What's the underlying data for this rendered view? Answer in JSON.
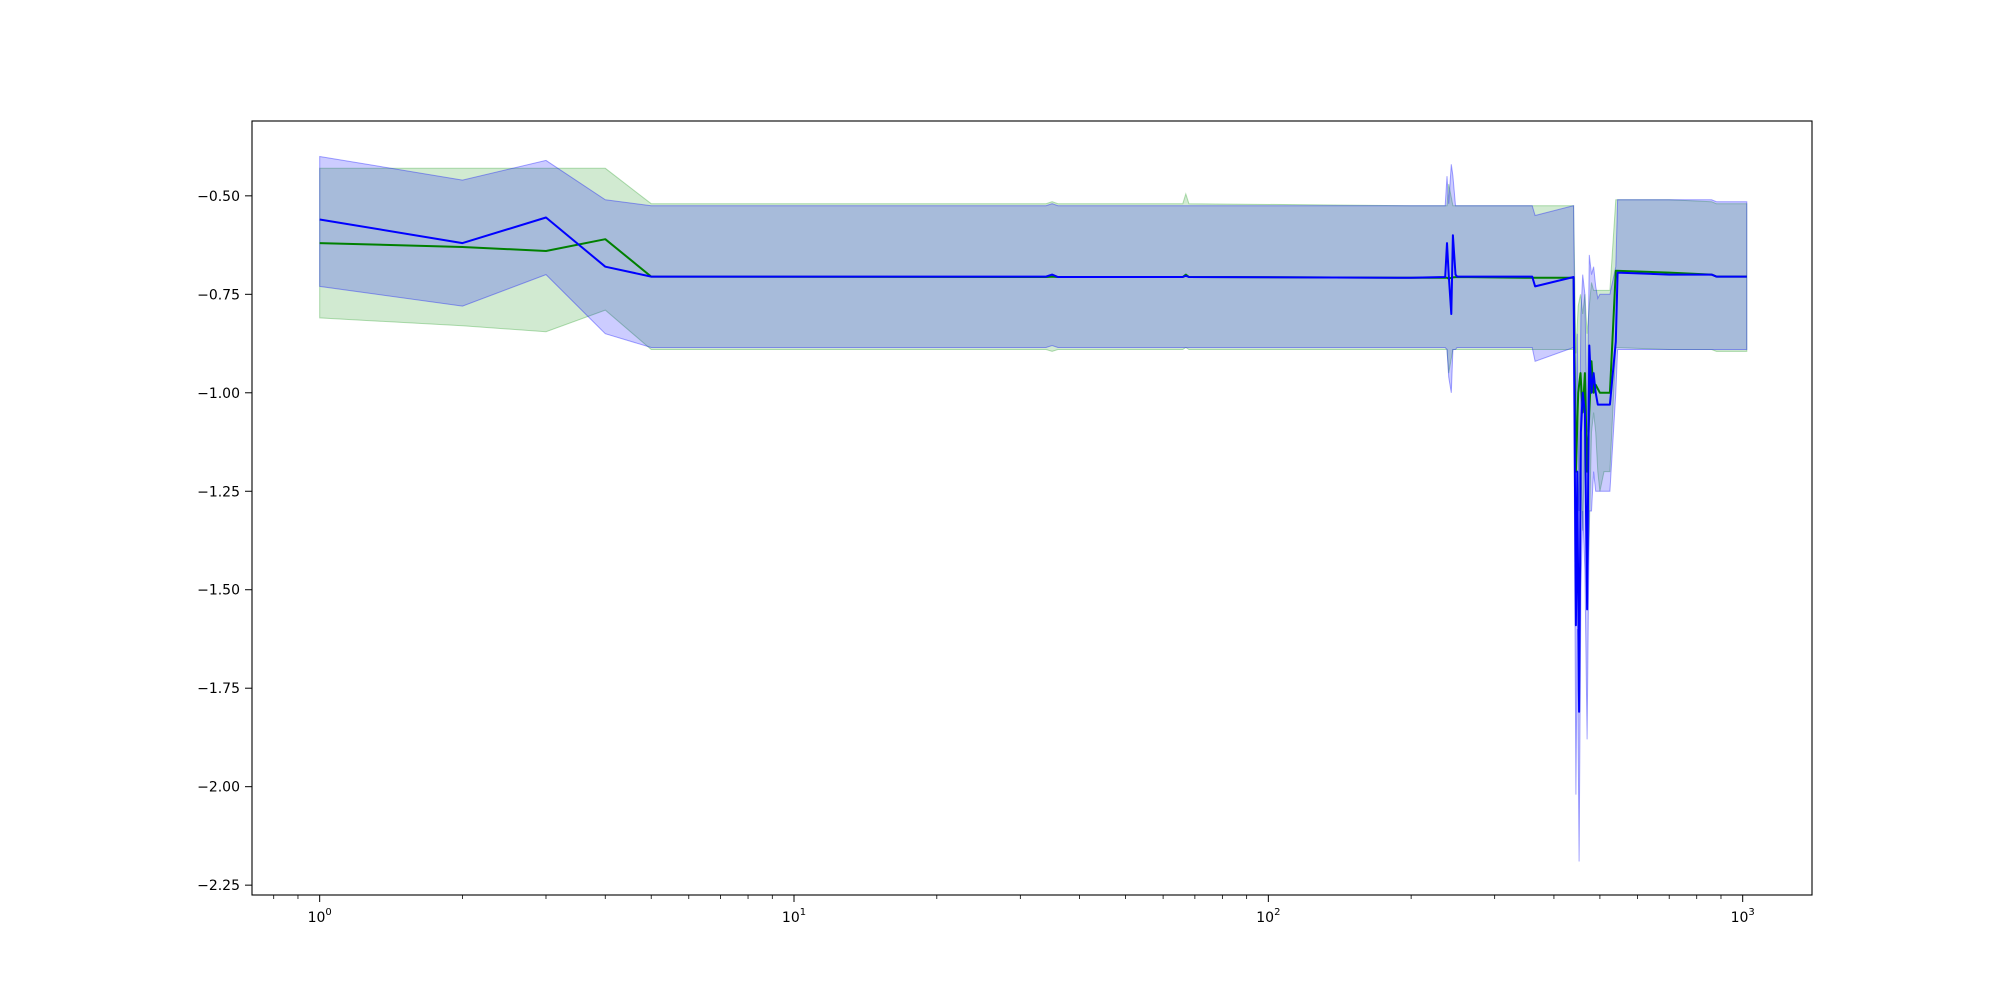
{
  "chart_data": {
    "type": "line",
    "title": "",
    "xlabel": "",
    "ylabel": "",
    "xscale": "log",
    "xlim": [
      0.72,
      1400
    ],
    "ylim": [
      -2.275,
      -0.31
    ],
    "grid": false,
    "x_ticks": [
      {
        "value": 1,
        "base": "10",
        "exp": "0"
      },
      {
        "value": 10,
        "base": "10",
        "exp": "1"
      },
      {
        "value": 100,
        "base": "10",
        "exp": "2"
      },
      {
        "value": 1000,
        "base": "10",
        "exp": "3"
      }
    ],
    "y_ticks": [
      {
        "value": -0.5,
        "label": "−0.50"
      },
      {
        "value": -0.75,
        "label": "−0.75"
      },
      {
        "value": -1.0,
        "label": "−1.00"
      },
      {
        "value": -1.25,
        "label": "−1.25"
      },
      {
        "value": -1.5,
        "label": "−1.50"
      },
      {
        "value": -1.75,
        "label": "−1.75"
      },
      {
        "value": -2.0,
        "label": "−2.00"
      },
      {
        "value": -2.25,
        "label": "−2.25"
      }
    ],
    "series": [
      {
        "color": "#008000",
        "band_color": "#2ca02c",
        "band_opacity": 0.22,
        "x": [
          1,
          2,
          3,
          4,
          5,
          34,
          35,
          36,
          66,
          67,
          68,
          200,
          238,
          240,
          245,
          250,
          360,
          440,
          445,
          450,
          455,
          460,
          465,
          470,
          475,
          480,
          485,
          490,
          495,
          500,
          510,
          525,
          540,
          700,
          860,
          880,
          1020
        ],
        "y": [
          -0.62,
          -0.63,
          -0.64,
          -0.61,
          -0.705,
          -0.706,
          -0.705,
          -0.706,
          -0.706,
          -0.7,
          -0.706,
          -0.708,
          -0.708,
          -0.71,
          -0.707,
          -0.706,
          -0.708,
          -0.708,
          -1.2,
          -1.0,
          -0.95,
          -1.05,
          -0.95,
          -1.2,
          -1.05,
          -0.92,
          -1.0,
          -0.98,
          -0.99,
          -1.0,
          -1.0,
          -1.0,
          -0.69,
          -0.695,
          -0.7,
          -0.705,
          -0.705
        ],
        "lower": [
          -0.81,
          -0.83,
          -0.845,
          -0.79,
          -0.89,
          -0.89,
          -0.895,
          -0.89,
          -0.89,
          -0.885,
          -0.89,
          -0.89,
          -0.89,
          -0.95,
          -0.89,
          -0.89,
          -0.89,
          -0.89,
          -1.4,
          -1.3,
          -1.15,
          -1.35,
          -1.1,
          -1.5,
          -1.35,
          -1.1,
          -1.05,
          -1.1,
          -1.2,
          -1.25,
          -1.2,
          -1.2,
          -0.885,
          -0.89,
          -0.89,
          -0.895,
          -0.895
        ],
        "upper": [
          -0.43,
          -0.43,
          -0.43,
          -0.43,
          -0.52,
          -0.52,
          -0.515,
          -0.52,
          -0.52,
          -0.495,
          -0.52,
          -0.525,
          -0.525,
          -0.47,
          -0.525,
          -0.525,
          -0.525,
          -0.525,
          -0.9,
          -0.78,
          -0.75,
          -0.8,
          -0.75,
          -0.85,
          -0.78,
          -0.72,
          -0.74,
          -0.74,
          -0.74,
          -0.74,
          -0.74,
          -0.74,
          -0.51,
          -0.51,
          -0.515,
          -0.52,
          -0.52
        ]
      },
      {
        "color": "#0000ff",
        "band_color": "#0000ff",
        "band_opacity": 0.2,
        "x": [
          1,
          2,
          3,
          4,
          5,
          34,
          35,
          36,
          66,
          67,
          68,
          200,
          236,
          238,
          240,
          243,
          245,
          248,
          250,
          360,
          365,
          440,
          445,
          448,
          452,
          456,
          460,
          465,
          470,
          475,
          480,
          485,
          490,
          495,
          500,
          510,
          525,
          540,
          545,
          700,
          860,
          880,
          1020
        ],
        "y": [
          -0.56,
          -0.62,
          -0.555,
          -0.68,
          -0.705,
          -0.705,
          -0.7,
          -0.706,
          -0.706,
          -0.703,
          -0.706,
          -0.708,
          -0.706,
          -0.62,
          -0.7,
          -0.8,
          -0.6,
          -0.7,
          -0.705,
          -0.705,
          -0.73,
          -0.706,
          -1.59,
          -1.2,
          -1.81,
          -1.1,
          -1.0,
          -1.05,
          -1.55,
          -0.88,
          -1.0,
          -0.95,
          -1.0,
          -1.03,
          -1.03,
          -1.03,
          -1.03,
          -0.87,
          -0.695,
          -0.7,
          -0.7,
          -0.705,
          -0.705
        ],
        "lower": [
          -0.73,
          -0.78,
          -0.7,
          -0.85,
          -0.885,
          -0.885,
          -0.88,
          -0.885,
          -0.885,
          -0.885,
          -0.885,
          -0.885,
          -0.885,
          -0.89,
          -0.96,
          -1.0,
          -0.89,
          -0.89,
          -0.885,
          -0.885,
          -0.92,
          -0.885,
          -2.02,
          -1.6,
          -2.19,
          -1.5,
          -1.3,
          -1.45,
          -1.88,
          -1.3,
          -1.3,
          -1.2,
          -1.25,
          -1.25,
          -1.25,
          -1.25,
          -1.25,
          -1.0,
          -0.89,
          -0.89,
          -0.89,
          -0.89,
          -0.89
        ],
        "upper": [
          -0.4,
          -0.46,
          -0.41,
          -0.51,
          -0.525,
          -0.525,
          -0.52,
          -0.525,
          -0.525,
          -0.525,
          -0.525,
          -0.525,
          -0.525,
          -0.45,
          -0.52,
          -0.42,
          -0.45,
          -0.525,
          -0.525,
          -0.525,
          -0.55,
          -0.525,
          -1.1,
          -0.85,
          -1.3,
          -0.8,
          -0.7,
          -0.75,
          -1.1,
          -0.65,
          -0.7,
          -0.68,
          -0.73,
          -0.76,
          -0.75,
          -0.75,
          -0.75,
          -0.68,
          -0.51,
          -0.51,
          -0.51,
          -0.515,
          -0.515
        ]
      }
    ]
  }
}
